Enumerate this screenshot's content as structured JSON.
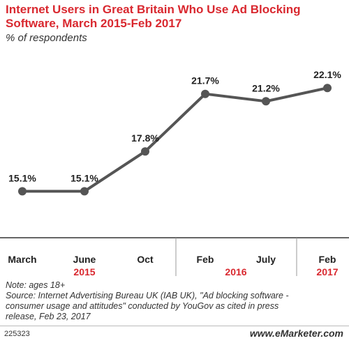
{
  "chart_data": {
    "type": "line",
    "title": "Internet Users in Great Britain Who Use Ad Blocking Software, March 2015-Feb 2017",
    "subtitle": "% of respondents",
    "categories": [
      "March",
      "June",
      "Oct",
      "Feb",
      "July",
      "Feb"
    ],
    "years": [
      "2015",
      "2016",
      "2017"
    ],
    "series": [
      {
        "values": [
          15.1,
          15.1,
          17.8,
          21.7,
          21.2,
          22.1
        ]
      }
    ],
    "data_labels": [
      "15.1%",
      "15.1%",
      "17.8%",
      "21.7%",
      "21.2%",
      "22.1%"
    ],
    "ylim": [
      12,
      24
    ],
    "grid": false,
    "line_color": "#555555",
    "accent_color": "#d9282f"
  },
  "notes": {
    "note": "Note: ages 18+",
    "source_lines": [
      "Source: Internet Advertising Bureau UK (IAB UK), \"Ad blocking software -",
      "consumer usage and attitudes\" conducted by YouGov as cited in press",
      "release, Feb 23, 2017"
    ]
  },
  "footer": {
    "id": "225323",
    "brand": "www.eMarketer.com"
  }
}
